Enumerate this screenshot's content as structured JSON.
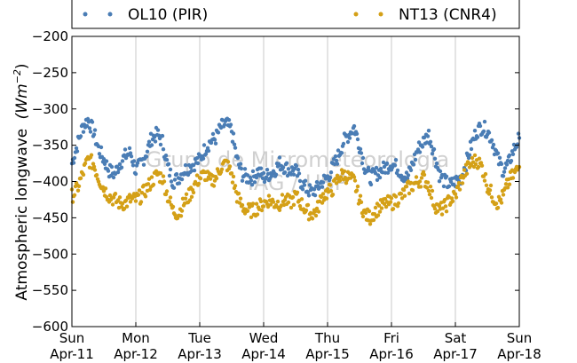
{
  "chart_data": {
    "type": "scatter",
    "ylabel": "Atmospheric longwave",
    "ylabel_unit": {
      "base": "(Wm",
      "sup": "−2",
      "close": ")"
    },
    "ylim": [
      -600,
      -200
    ],
    "yticks": [
      -200,
      -250,
      -300,
      -350,
      -400,
      -450,
      -500,
      -550,
      -600
    ],
    "ytick_labels": [
      "−200",
      "−250",
      "−300",
      "−350",
      "−400",
      "−450",
      "−500",
      "−550",
      "−600"
    ],
    "xlim": [
      "2010-04-11",
      "2010-04-18"
    ],
    "xticks": [
      {
        "day": "Sun",
        "date": "Apr-11"
      },
      {
        "day": "Mon",
        "date": "Apr-12"
      },
      {
        "day": "Tue",
        "date": "Apr-13"
      },
      {
        "day": "Wed",
        "date": "Apr-14"
      },
      {
        "day": "Thu",
        "date": "Apr-15"
      },
      {
        "day": "Fri",
        "date": "Apr-16"
      },
      {
        "day": "Sat",
        "date": "Apr-17"
      },
      {
        "day": "Sun",
        "date": "Apr-18"
      }
    ],
    "grid": "vertical",
    "legend_placement": "top, outside plot",
    "watermark": [
      "Grupo de Micrometeorologia",
      "IAG / USP"
    ],
    "series": [
      {
        "name": "OL10 (PIR)",
        "color": "#4a7db5",
        "x_days": [
          0.0,
          0.083,
          0.167,
          0.25,
          0.333,
          0.417,
          0.5,
          0.583,
          0.667,
          0.75,
          0.833,
          0.917,
          1.0,
          1.083,
          1.167,
          1.25,
          1.333,
          1.417,
          1.5,
          1.583,
          1.667,
          1.75,
          1.833,
          1.917,
          2.0,
          2.083,
          2.167,
          2.25,
          2.333,
          2.417,
          2.5,
          2.583,
          2.667,
          2.75,
          2.833,
          2.917,
          3.0,
          3.083,
          3.167,
          3.25,
          3.333,
          3.417,
          3.5,
          3.583,
          3.667,
          3.75,
          3.833,
          3.917,
          4.0,
          4.083,
          4.167,
          4.25,
          4.333,
          4.417,
          4.5,
          4.583,
          4.667,
          4.75,
          4.833,
          4.917,
          5.0,
          5.083,
          5.167,
          5.25,
          5.333,
          5.417,
          5.5,
          5.583,
          5.667,
          5.75,
          5.833,
          5.917,
          6.0,
          6.083,
          6.167,
          6.25,
          6.333,
          6.417,
          6.5,
          6.583,
          6.667,
          6.75,
          6.833,
          6.917,
          7.0
        ],
        "values": [
          -375,
          -350,
          -325,
          -315,
          -330,
          -355,
          -370,
          -385,
          -390,
          -375,
          -365,
          -360,
          -385,
          -375,
          -360,
          -340,
          -335,
          -345,
          -380,
          -400,
          -395,
          -385,
          -380,
          -375,
          -370,
          -355,
          -345,
          -340,
          -325,
          -320,
          -330,
          -370,
          -390,
          -395,
          -395,
          -385,
          -395,
          -390,
          -385,
          -375,
          -380,
          -385,
          -385,
          -400,
          -410,
          -415,
          -410,
          -400,
          -395,
          -380,
          -365,
          -345,
          -335,
          -325,
          -350,
          -380,
          -395,
          -390,
          -385,
          -380,
          -375,
          -380,
          -390,
          -395,
          -375,
          -355,
          -345,
          -335,
          -360,
          -390,
          -400,
          -405,
          -400,
          -395,
          -375,
          -350,
          -330,
          -325,
          -330,
          -345,
          -370,
          -385,
          -375,
          -355,
          -340
        ]
      },
      {
        "name": "NT13 (CNR4)",
        "color": "#d4a017",
        "x_days": [
          0.0,
          0.083,
          0.167,
          0.25,
          0.333,
          0.417,
          0.5,
          0.583,
          0.667,
          0.75,
          0.833,
          0.917,
          1.0,
          1.083,
          1.167,
          1.25,
          1.333,
          1.417,
          1.5,
          1.583,
          1.667,
          1.75,
          1.833,
          1.917,
          2.0,
          2.083,
          2.167,
          2.25,
          2.333,
          2.417,
          2.5,
          2.583,
          2.667,
          2.75,
          2.833,
          2.917,
          3.0,
          3.083,
          3.167,
          3.25,
          3.333,
          3.417,
          3.5,
          3.583,
          3.667,
          3.75,
          3.833,
          3.917,
          4.0,
          4.083,
          4.167,
          4.25,
          4.333,
          4.417,
          4.5,
          4.583,
          4.667,
          4.75,
          4.833,
          4.917,
          5.0,
          5.083,
          5.167,
          5.25,
          5.333,
          5.417,
          5.5,
          5.583,
          5.667,
          5.75,
          5.833,
          5.917,
          6.0,
          6.083,
          6.167,
          6.25,
          6.333,
          6.417,
          6.5,
          6.583,
          6.667,
          6.75,
          6.833,
          6.917,
          7.0
        ],
        "values": [
          -420,
          -410,
          -390,
          -370,
          -375,
          -395,
          -410,
          -420,
          -425,
          -430,
          -430,
          -425,
          -425,
          -420,
          -410,
          -400,
          -390,
          -395,
          -420,
          -440,
          -445,
          -430,
          -420,
          -405,
          -395,
          -390,
          -400,
          -395,
          -380,
          -375,
          -390,
          -420,
          -435,
          -440,
          -440,
          -435,
          -430,
          -425,
          -430,
          -430,
          -425,
          -430,
          -420,
          -430,
          -440,
          -445,
          -440,
          -420,
          -415,
          -410,
          -395,
          -390,
          -395,
          -400,
          -425,
          -445,
          -450,
          -440,
          -435,
          -430,
          -430,
          -425,
          -420,
          -410,
          -405,
          -400,
          -395,
          -405,
          -430,
          -440,
          -435,
          -425,
          -420,
          -400,
          -385,
          -375,
          -370,
          -380,
          -405,
          -420,
          -430,
          -420,
          -400,
          -390,
          -380
        ]
      }
    ]
  }
}
